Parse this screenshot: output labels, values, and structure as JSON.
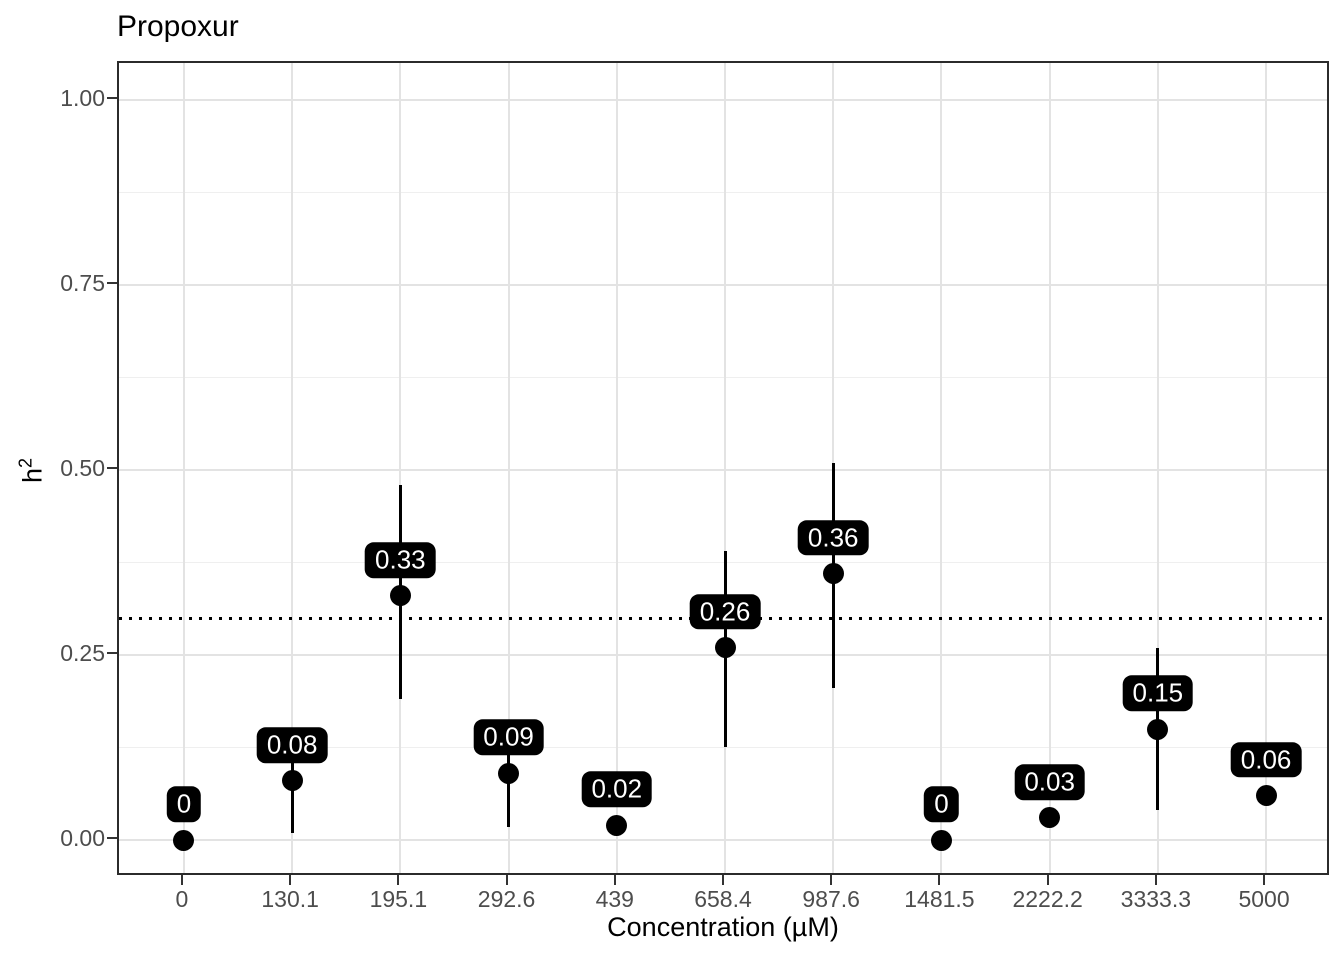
{
  "title": "Propoxur",
  "axes": {
    "y_label_base": "h",
    "y_label_exp": "2",
    "x_label": "Concentration (µM)"
  },
  "chart_data": {
    "type": "scatter",
    "title": "Propoxur",
    "xlabel": "Concentration (µM)",
    "ylabel": "h²",
    "categories": [
      "0",
      "130.1",
      "195.1",
      "292.6",
      "439",
      "658.4",
      "987.6",
      "1481.5",
      "2222.2",
      "3333.3",
      "5000"
    ],
    "values": [
      0,
      0.08,
      0.33,
      0.09,
      0.02,
      0.26,
      0.36,
      0,
      0.03,
      0.15,
      0.06
    ],
    "point_labels": [
      "0",
      "0.08",
      "0.33",
      "0.09",
      "0.02",
      "0.26",
      "0.36",
      "0",
      "0.03",
      "0.15",
      "0.06"
    ],
    "error_low": [
      null,
      0.01,
      0.19,
      0.017,
      null,
      0.125,
      0.205,
      null,
      null,
      0.04,
      null
    ],
    "error_high": [
      null,
      0.145,
      0.48,
      0.155,
      null,
      0.39,
      0.51,
      null,
      null,
      0.26,
      null
    ],
    "hline": {
      "y": 0.3,
      "style": "dotted"
    },
    "ylim": [
      -0.05,
      1.05
    ],
    "y_major_ticks": [
      0,
      0.25,
      0.5,
      0.75,
      1.0
    ],
    "y_tick_labels": [
      "0.00",
      "0.25",
      "0.50",
      "0.75",
      "1.00"
    ],
    "y_minor_ticks": [
      0.125,
      0.375,
      0.625,
      0.875
    ],
    "grid": true,
    "legend": "none",
    "colors": {
      "point": "#000000",
      "error_bar": "#000000",
      "label_bg": "#000000",
      "label_text": "#ffffff",
      "grid_major": "#e3e3e3",
      "grid_minor": "#efefef",
      "axis_text": "#4d4d4d",
      "panel_border": "#2b2b2b",
      "threshold": "#000000"
    }
  }
}
